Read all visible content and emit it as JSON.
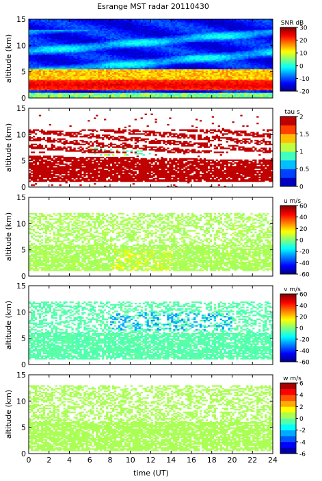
{
  "chart_data": {
    "type": "heatmap",
    "title": "Esrange MST radar 20110430",
    "xlabel": "time (UT)",
    "xlim": [
      0,
      24
    ],
    "x_ticks": [
      "0",
      "2",
      "4",
      "6",
      "8",
      "10",
      "12",
      "14",
      "16",
      "18",
      "20",
      "22",
      "24"
    ],
    "panels": [
      {
        "id": "snr",
        "ylabel": "altitude (km)",
        "ylim": [
          0,
          15
        ],
        "y_ticks": [
          "0",
          "5",
          "10",
          "15"
        ],
        "colorbar_label": "SNR dB",
        "colorbar_range": [
          -20,
          30
        ],
        "colorbar_ticks": [
          "30",
          "20",
          "10",
          "0",
          "-10",
          "-20"
        ],
        "colormap": "jet",
        "description_features": {
          "strong_layer_km": [
            1.5,
            3.5
          ],
          "peak_value_db": 25,
          "background_value_db": -15
        }
      },
      {
        "id": "tau",
        "ylabel": "altitude (km)",
        "ylim": [
          0,
          15
        ],
        "y_ticks": [
          "0",
          "5",
          "10",
          "15"
        ],
        "colorbar_label": "tau s",
        "colorbar_range": [
          0,
          2
        ],
        "colorbar_ticks": [
          "2",
          "1.5",
          "1",
          "0.5",
          "0"
        ],
        "colormap": "jet_discrete_8",
        "description_features": {
          "dominant_value_s": 2,
          "dense_band_km": [
            1,
            6
          ],
          "upper_band_km": [
            6.5,
            11
          ]
        }
      },
      {
        "id": "u",
        "ylabel": "altitude (km)",
        "ylim": [
          0,
          15
        ],
        "y_ticks": [
          "0",
          "5",
          "10",
          "15"
        ],
        "colorbar_label": "u m/s",
        "colorbar_range": [
          -60,
          60
        ],
        "colorbar_ticks": [
          "60",
          "40",
          "20",
          "0",
          "-20",
          "-40",
          "-60"
        ],
        "colormap": "jet",
        "description_features": {
          "typical_value_ms": 5,
          "coverage_km": [
            1,
            12
          ]
        }
      },
      {
        "id": "v",
        "ylabel": "altitude (km)",
        "ylim": [
          0,
          15
        ],
        "y_ticks": [
          "0",
          "5",
          "10",
          "15"
        ],
        "colorbar_label": "v m/s",
        "colorbar_range": [
          -60,
          60
        ],
        "colorbar_ticks": [
          "60",
          "40",
          "20",
          "0",
          "-20",
          "-40",
          "-60"
        ],
        "colormap": "jet",
        "description_features": {
          "typical_value_ms": -5,
          "jet_band_value_ms": -25,
          "coverage_km": [
            1,
            12
          ]
        }
      },
      {
        "id": "w",
        "ylabel": "altitude (km)",
        "ylim": [
          0,
          15
        ],
        "y_ticks": [
          "0",
          "5",
          "10",
          "15"
        ],
        "colorbar_label": "w m/s",
        "colorbar_range": [
          -6,
          6
        ],
        "colorbar_ticks": [
          "6",
          "4",
          "2",
          "0",
          "-2",
          "-4",
          "-6"
        ],
        "colormap": "jet_discrete_12",
        "description_features": {
          "typical_value_ms": 0.5,
          "coverage_km": [
            0.5,
            13
          ]
        }
      }
    ]
  }
}
